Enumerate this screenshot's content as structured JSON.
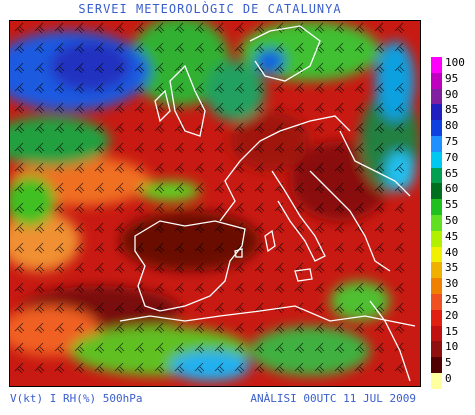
{
  "header": {
    "title": "SERVEI METEOROLÒGIC DE CATALUNYA"
  },
  "footer": {
    "variable_label": "V(kt) I RH(%) 500hPa",
    "analysis_label": "ANÀLISI 00UTC 11 JUL 2009"
  },
  "legend": {
    "items": [
      {
        "label": "100",
        "color": "#ff00ff"
      },
      {
        "label": "95",
        "color": "#c000c0"
      },
      {
        "label": "90",
        "color": "#8020a0"
      },
      {
        "label": "85",
        "color": "#2020c0"
      },
      {
        "label": "80",
        "color": "#1040e0"
      },
      {
        "label": "75",
        "color": "#1e90ff"
      },
      {
        "label": "70",
        "color": "#00c8f0"
      },
      {
        "label": "65",
        "color": "#00a050"
      },
      {
        "label": "60",
        "color": "#007020"
      },
      {
        "label": "55",
        "color": "#20c020"
      },
      {
        "label": "50",
        "color": "#60e020"
      },
      {
        "label": "45",
        "color": "#b0f000"
      },
      {
        "label": "40",
        "color": "#f0f000"
      },
      {
        "label": "35",
        "color": "#f0b000"
      },
      {
        "label": "30",
        "color": "#f08000"
      },
      {
        "label": "25",
        "color": "#f05020"
      },
      {
        "label": "20",
        "color": "#e02010"
      },
      {
        "label": "15",
        "color": "#c01010"
      },
      {
        "label": "10",
        "color": "#901010"
      },
      {
        "label": "5",
        "color": "#500000"
      },
      {
        "label": "0",
        "color": "#ffffa0"
      }
    ]
  }
}
